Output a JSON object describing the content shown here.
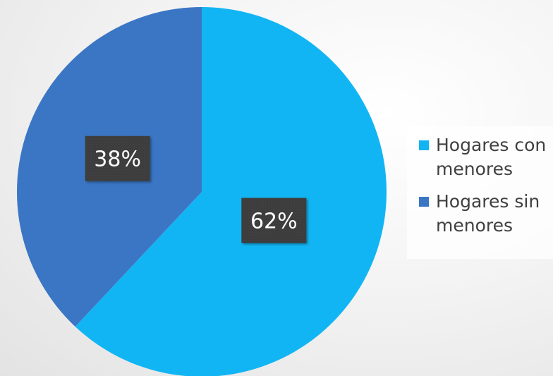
{
  "chart_data": {
    "type": "pie",
    "title": "",
    "slices": [
      {
        "label": "Hogares con menores",
        "value": 62,
        "display": "62%",
        "color": "#12b5f3"
      },
      {
        "label": "Hogares sin menores",
        "value": 38,
        "display": "38%",
        "color": "#3b76c4"
      }
    ],
    "start_angle_deg": 0,
    "direction": "clockwise",
    "legend_position": "right"
  },
  "colors": {
    "label_background": "#3a3a3a",
    "legend_text": "#404040"
  }
}
